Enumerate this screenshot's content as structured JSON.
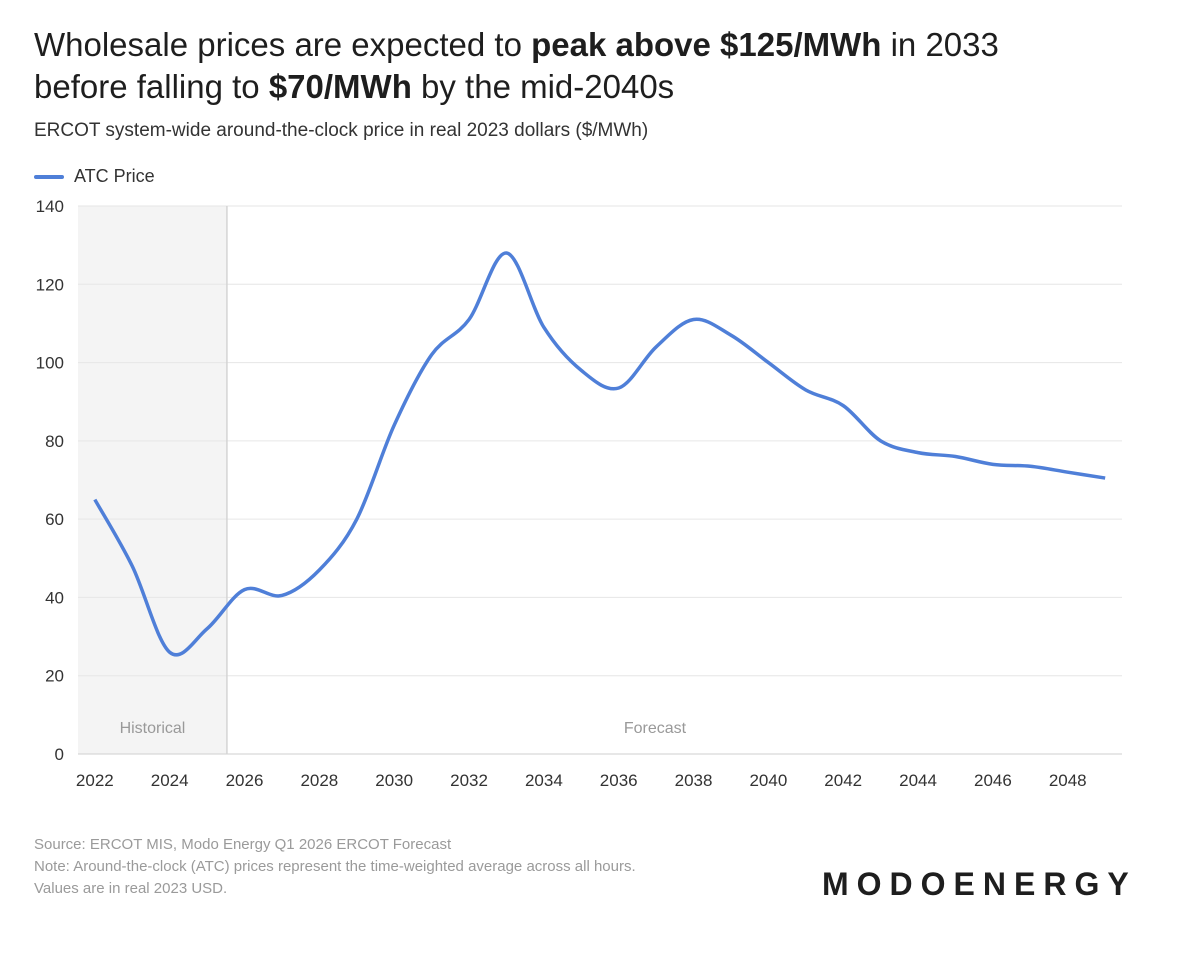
{
  "title": {
    "pre": "Wholesale prices are expected to ",
    "bold1": "peak above $125/MWh",
    "mid": " in 2033",
    "line2_pre": "before falling to ",
    "bold2": "$70/MWh",
    "post": " by the mid-2040s"
  },
  "subtitle": "ERCOT system-wide around-the-clock price in real 2023 dollars ($/MWh)",
  "footer": {
    "source": "Source: ERCOT MIS, Modo Energy Q1 2026 ERCOT Forecast",
    "note1": "Note: Around-the-clock (ATC) prices represent the time-weighted average across all hours.",
    "note2": "Values are in real 2023 USD."
  },
  "logo": "MODOENERGY",
  "colors": {
    "line": "#4f7fd8",
    "historical_bg": "#f4f4f4",
    "grid": "#e6e6e6"
  },
  "chart_data": {
    "type": "line",
    "title": "Wholesale prices are expected to peak above $125/MWh in 2033 before falling to $70/MWh by the mid-2040s",
    "xlabel": "",
    "ylabel": "$/MWh",
    "xlim": [
      2021.55,
      2049.45
    ],
    "ylim": [
      0,
      140
    ],
    "yticks": [
      0,
      20,
      40,
      60,
      80,
      100,
      120,
      140
    ],
    "xticks": [
      2022,
      2024,
      2026,
      2028,
      2030,
      2032,
      2034,
      2036,
      2038,
      2040,
      2042,
      2044,
      2046,
      2048
    ],
    "grid": true,
    "legend_position": "top-left",
    "regions": [
      {
        "label": "Historical",
        "from": 2021.55,
        "to": 2025.53
      },
      {
        "label": "Forecast",
        "from": 2025.53,
        "to": 2049.45
      }
    ],
    "series": [
      {
        "name": "ATC Price",
        "x": [
          2022,
          2023,
          2024,
          2025,
          2026,
          2027,
          2028,
          2029,
          2030,
          2031,
          2032,
          2033,
          2034,
          2035,
          2036,
          2037,
          2038,
          2039,
          2040,
          2041,
          2042,
          2043,
          2044,
          2045,
          2046,
          2047,
          2048,
          2049
        ],
        "values": [
          65,
          48,
          26,
          32,
          42,
          40.5,
          47,
          60,
          84,
          102,
          111,
          128,
          109,
          98,
          93.5,
          104,
          111,
          107,
          100,
          93,
          89,
          80,
          77,
          76,
          74,
          73.5,
          72,
          70.5
        ]
      }
    ]
  }
}
